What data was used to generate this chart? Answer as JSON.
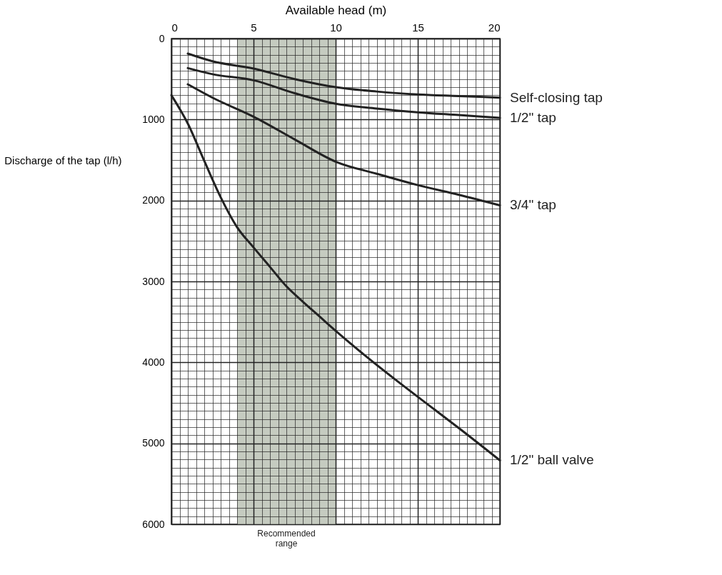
{
  "chart_data": {
    "type": "line",
    "xlabel": "Available head (m)",
    "ylabel": "Discharge of the tap (l/h)",
    "xlim": [
      0,
      20
    ],
    "ylim": [
      6000,
      0
    ],
    "xticks": [
      0,
      {
        "value": 0.5,
        "label": null
      },
      {
        "value": 1,
        "label": null
      },
      {
        "value": 1.5,
        "label": null
      },
      {
        "value": 2,
        "label": null
      },
      {
        "value": 2.5,
        "label": null
      },
      {
        "value": 3,
        "label": null
      },
      {
        "value": 3.5,
        "label": null
      },
      {
        "value": 4,
        "label": null
      },
      {
        "value": 4.5,
        "label": null
      },
      5,
      {
        "value": 5.5,
        "label": null
      },
      {
        "value": 6,
        "label": null
      },
      {
        "value": 6.5,
        "label": null
      },
      {
        "value": 7,
        "label": null
      },
      {
        "value": 7.5,
        "label": null
      },
      {
        "value": 8,
        "label": null
      },
      {
        "value": 8.5,
        "label": null
      },
      {
        "value": 9,
        "label": null
      },
      {
        "value": 9.5,
        "label": null
      },
      10,
      {
        "value": 10.5,
        "label": null
      },
      {
        "value": 11,
        "label": null
      },
      {
        "value": 11.5,
        "label": null
      },
      {
        "value": 12,
        "label": null
      },
      {
        "value": 12.5,
        "label": null
      },
      {
        "value": 13,
        "label": null
      },
      {
        "value": 13.5,
        "label": null
      },
      {
        "value": 14,
        "label": null
      },
      {
        "value": 14.5,
        "label": null
      },
      15,
      {
        "value": 15.5,
        "label": null
      },
      {
        "value": 16,
        "label": null
      },
      {
        "value": 16.5,
        "label": null
      },
      {
        "value": 17,
        "label": null
      },
      {
        "value": 17.5,
        "label": null
      },
      {
        "value": 18,
        "label": null
      },
      {
        "value": 18.5,
        "label": null
      },
      {
        "value": 19,
        "label": null
      },
      {
        "value": 19.5,
        "label": null
      },
      20
    ],
    "yticks": [
      0,
      {
        "value": 100,
        "label": null
      },
      {
        "value": 200,
        "label": null
      },
      {
        "value": 300,
        "label": null
      },
      {
        "value": 400,
        "label": null
      },
      {
        "value": 500,
        "label": null
      },
      {
        "value": 600,
        "label": null
      },
      {
        "value": 700,
        "label": null
      },
      {
        "value": 800,
        "label": null
      },
      {
        "value": 900,
        "label": null
      },
      1000,
      {
        "value": 1100,
        "label": null
      },
      {
        "value": 1200,
        "label": null
      },
      {
        "value": 1300,
        "label": null
      },
      {
        "value": 1400,
        "label": null
      },
      {
        "value": 1500,
        "label": null
      },
      {
        "value": 1600,
        "label": null
      },
      {
        "value": 1700,
        "label": null
      },
      {
        "value": 1800,
        "label": null
      },
      {
        "value": 1900,
        "label": null
      },
      2000,
      {
        "value": 2100,
        "label": null
      },
      {
        "value": 2200,
        "label": null
      },
      {
        "value": 2300,
        "label": null
      },
      {
        "value": 2400,
        "label": null
      },
      {
        "value": 2500,
        "label": null
      },
      {
        "value": 2600,
        "label": null
      },
      {
        "value": 2700,
        "label": null
      },
      {
        "value": 2800,
        "label": null
      },
      {
        "value": 2900,
        "label": null
      },
      3000,
      {
        "value": 3100,
        "label": null
      },
      {
        "value": 3200,
        "label": null
      },
      {
        "value": 3300,
        "label": null
      },
      {
        "value": 3400,
        "label": null
      },
      {
        "value": 3500,
        "label": null
      },
      {
        "value": 3600,
        "label": null
      },
      {
        "value": 3700,
        "label": null
      },
      {
        "value": 3800,
        "label": null
      },
      {
        "value": 3900,
        "label": null
      },
      4000,
      {
        "value": 4100,
        "label": null
      },
      {
        "value": 4200,
        "label": null
      },
      {
        "value": 4300,
        "label": null
      },
      {
        "value": 4400,
        "label": null
      },
      {
        "value": 4500,
        "label": null
      },
      {
        "value": 4600,
        "label": null
      },
      {
        "value": 4700,
        "label": null
      },
      {
        "value": 4800,
        "label": null
      },
      {
        "value": 4900,
        "label": null
      },
      5000,
      {
        "value": 5100,
        "label": null
      },
      {
        "value": 5200,
        "label": null
      },
      {
        "value": 5300,
        "label": null
      },
      {
        "value": 5400,
        "label": null
      },
      {
        "value": 5500,
        "label": null
      },
      {
        "value": 5600,
        "label": null
      },
      {
        "value": 5700,
        "label": null
      },
      {
        "value": 5800,
        "label": null
      },
      {
        "value": 5900,
        "label": null
      },
      6000
    ],
    "grid": true,
    "series": [
      {
        "name": "Self-closing tap",
        "color": "#222222",
        "x": [
          1,
          2.5,
          5,
          7.5,
          10,
          12.5,
          15,
          17.5,
          20
        ],
        "values": [
          185,
          280,
          370,
          500,
          600,
          654,
          690,
          710,
          730
        ]
      },
      {
        "name": "1/2\" tap",
        "color": "#222222",
        "x": [
          1,
          2.5,
          5,
          7.5,
          10,
          12.5,
          15,
          17.5,
          20
        ],
        "values": [
          365,
          440,
          515,
          675,
          805,
          864,
          910,
          945,
          980
        ]
      },
      {
        "name": "3/4\" tap",
        "color": "#222222",
        "x": [
          1,
          2.5,
          5,
          7.5,
          10,
          12.5,
          15,
          17.5,
          20
        ],
        "values": [
          565,
          730,
          965,
          1245,
          1520,
          1670,
          1810,
          1930,
          2060
        ]
      },
      {
        "name": "1/2\" ball valve",
        "color": "#222222",
        "x": [
          0,
          1,
          2,
          3,
          4,
          5,
          6,
          7,
          8,
          9,
          10,
          12,
          14,
          16,
          18,
          20
        ],
        "values": [
          700,
          1050,
          1510,
          1960,
          2330,
          2580,
          2820,
          3060,
          3250,
          3430,
          3610,
          3950,
          4270,
          4580,
          4890,
          5210
        ]
      }
    ],
    "bands": [
      {
        "axis": "x",
        "from": 4,
        "to": 10,
        "label": "Recommended range",
        "color": "#c5cbc0"
      }
    ]
  }
}
